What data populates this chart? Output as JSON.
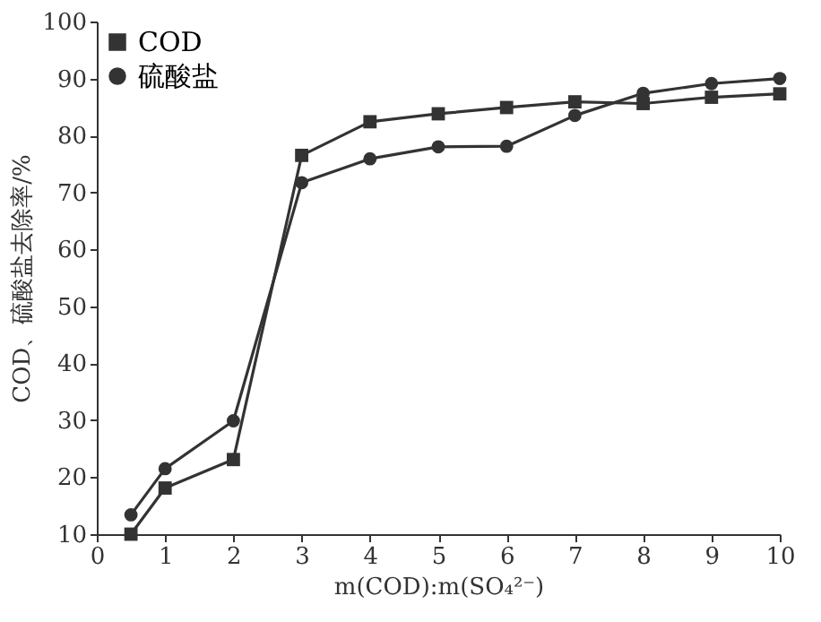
{
  "chart_data": {
    "type": "line",
    "xlabel": "m(COD):m(SO₄²⁻)",
    "ylabel": "COD、硫酸盐去除率/%",
    "x": [
      0.5,
      1,
      2,
      3,
      4,
      5,
      6,
      7,
      8,
      9,
      10
    ],
    "series": [
      {
        "name": "COD",
        "color": "#333333",
        "marker": "square",
        "values": [
          10,
          18.1,
          23.1,
          76.5,
          82.4,
          83.8,
          84.9,
          85.9,
          85.6,
          86.7,
          87.3
        ]
      },
      {
        "name": "硫酸盐",
        "color": "#333333",
        "marker": "circle",
        "values": [
          13.4,
          21.5,
          29.9,
          71.7,
          75.9,
          78,
          78.1,
          83.5,
          87.4,
          89.1,
          90
        ]
      }
    ],
    "xlim": [
      0,
      10
    ],
    "xticks": [
      0,
      1,
      2,
      3,
      4,
      5,
      6,
      7,
      8,
      9,
      10
    ],
    "ylim": [
      10,
      100
    ],
    "yticks": [
      10,
      20,
      30,
      40,
      50,
      60,
      70,
      80,
      90,
      100
    ],
    "legend": "top left",
    "grid": false,
    "line_style": "solid"
  }
}
